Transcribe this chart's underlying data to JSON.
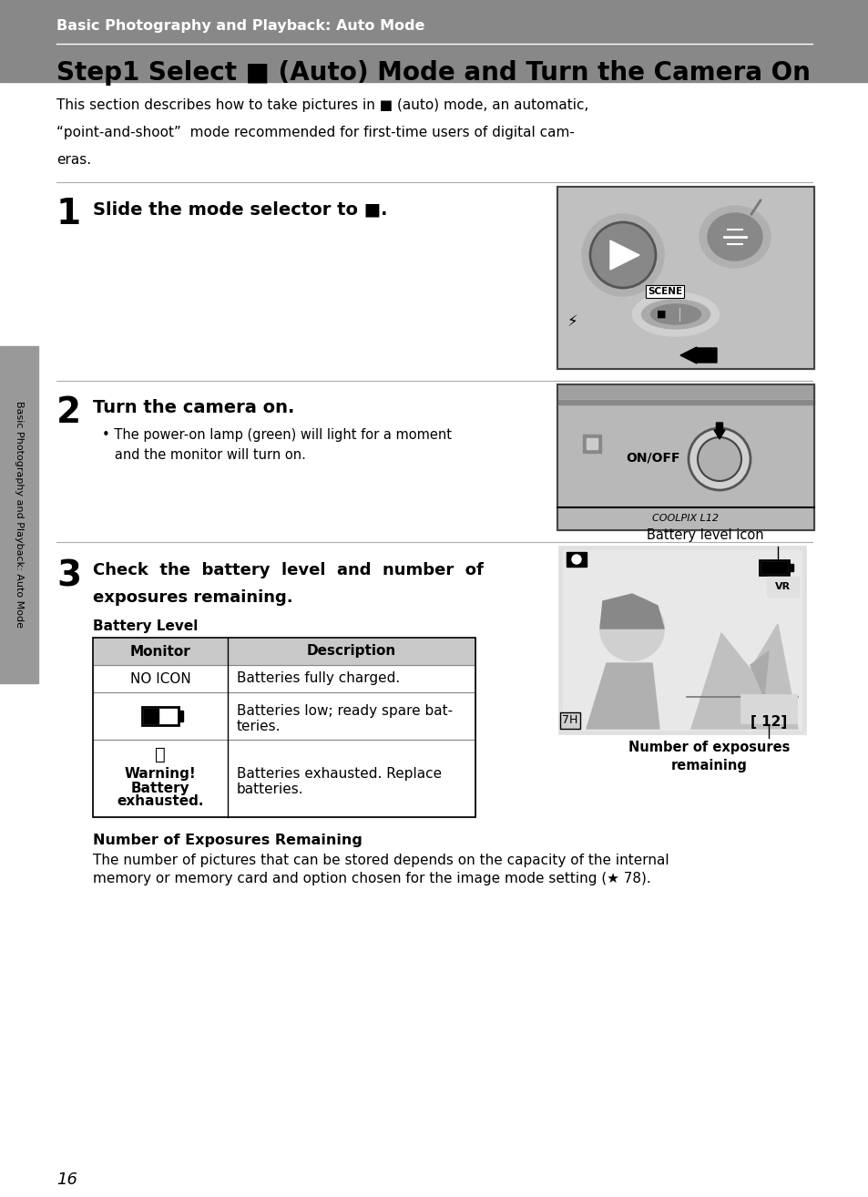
{
  "bg_color": "#ffffff",
  "header_bg": "#888888",
  "header_text": "Basic Photography and Playback: Auto Mode",
  "header_text_color": "#ffffff",
  "title_color": "#000000",
  "intro_text_line1": "This section describes how to take pictures in ■ (auto) mode, an automatic,",
  "intro_text_line2": "“point-and-shoot”  mode recommended for first-time users of digital cam-",
  "intro_text_line3": "eras.",
  "step1_num": "1",
  "step1_text": "Slide the mode selector to ■.",
  "step2_num": "2",
  "step2_text": "Turn the camera on.",
  "step2_bullet": "• The power-on lamp (green) will light for a moment\n   and the monitor will turn on.",
  "step3_num": "3",
  "step3_text_line1": "Check  the  battery  level  and  number  of",
  "step3_text_line2": "exposures remaining.",
  "battery_section_title": "Battery Level",
  "table_header_col1": "Monitor",
  "table_header_col2": "Description",
  "row1_col1": "NO ICON",
  "row1_col2": "Batteries fully charged.",
  "row2_col2_line1": "Batteries low; ready spare bat-",
  "row2_col2_line2": "teries.",
  "row3_col1_line1": "ⓘ",
  "row3_col1_line2": "Warning!",
  "row3_col1_line3": "Battery",
  "row3_col1_line4": "exhausted.",
  "row3_col2_line1": "Batteries exhausted. Replace",
  "row3_col2_line2": "batteries.",
  "battery_icon_label": "Battery level icon",
  "num_exp_label_line1": "Number of exposures",
  "num_exp_label_line2": "remaining",
  "num_exposures_title": "Number of Exposures Remaining",
  "num_exposures_line1": "The number of pictures that can be stored depends on the capacity of the internal",
  "num_exposures_line2": "memory or memory card and option chosen for the image mode setting (★ 78).",
  "sidebar_text": "Basic Photography and Playback: Auto Mode",
  "page_num": "16",
  "separator_color": "#aaaaaa",
  "header_separator_color": "#ffffff",
  "sidebar_bg": "#999999"
}
